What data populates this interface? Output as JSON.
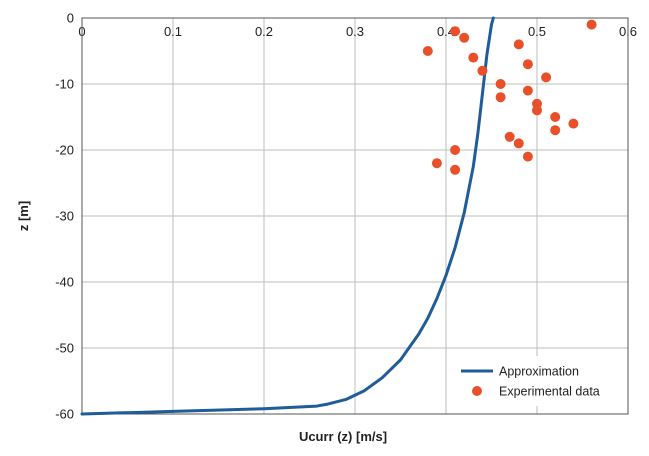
{
  "chart_data": {
    "type": "line",
    "title": "",
    "xlabel": "Ucurr (z) [m/s]",
    "ylabel": "z [m]",
    "xlim": [
      0,
      0.6
    ],
    "ylim": [
      -60,
      0
    ],
    "x_ticks": [
      "0",
      "0.1",
      "0.2",
      "0.3",
      "0.4",
      "0.5",
      "0.6"
    ],
    "y_ticks": [
      "0",
      "-10",
      "-20",
      "-30",
      "-40",
      "-50",
      "-60"
    ],
    "x_axis_position": "top",
    "grid": true,
    "legend_position": "bottom-right",
    "series": [
      {
        "name": "Approximation",
        "type": "line",
        "color": "#1f5c99",
        "x": [
          0.0,
          0.1,
          0.2,
          0.258,
          0.27,
          0.29,
          0.31,
          0.33,
          0.35,
          0.37,
          0.38,
          0.39,
          0.4,
          0.41,
          0.42,
          0.43,
          0.435,
          0.44,
          0.445,
          0.45,
          0.452
        ],
        "y": [
          -60,
          -59.6,
          -59.2,
          -58.8,
          -58.5,
          -57.8,
          -56.5,
          -54.5,
          -51.8,
          -47.9,
          -45.5,
          -42.5,
          -39.0,
          -34.8,
          -29.5,
          -22.5,
          -17.5,
          -11.5,
          -5.5,
          -1.0,
          0
        ]
      },
      {
        "name": "Experimental data",
        "type": "scatter",
        "color": "#e8502a",
        "x": [
          0.56,
          0.41,
          0.42,
          0.38,
          0.43,
          0.48,
          0.44,
          0.49,
          0.51,
          0.46,
          0.46,
          0.49,
          0.5,
          0.5,
          0.52,
          0.54,
          0.52,
          0.47,
          0.48,
          0.41,
          0.49,
          0.39,
          0.41
        ],
        "y": [
          -1,
          -2,
          -3,
          -5,
          -6,
          -4,
          -8,
          -7,
          -9,
          -10,
          -12,
          -11,
          -13,
          -14,
          -15,
          -16,
          -17,
          -18,
          -19,
          -20,
          -21,
          -22,
          -23
        ]
      }
    ]
  }
}
